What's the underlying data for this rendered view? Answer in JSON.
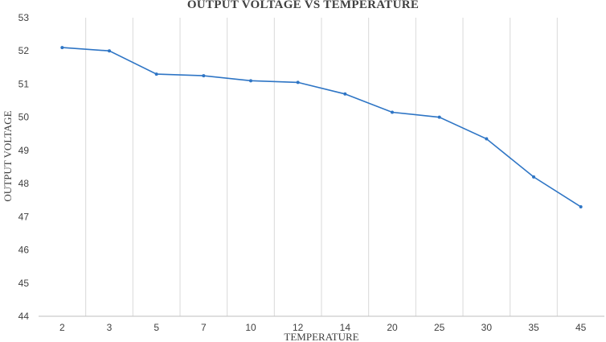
{
  "chart_data": {
    "type": "line",
    "title": "OUTPUT VOLTAGE VS TEMPERATURE",
    "xlabel": "TEMPERATURE",
    "ylabel": "OUTPUT VOLTAGE",
    "categories": [
      "2",
      "3",
      "5",
      "7",
      "10",
      "12",
      "14",
      "20",
      "25",
      "30",
      "35",
      "45"
    ],
    "series": [
      {
        "values": [
          52.1,
          52.0,
          51.3,
          51.25,
          51.1,
          51.05,
          50.7,
          50.15,
          50.0,
          49.35,
          48.2,
          47.3
        ]
      }
    ],
    "ylim": [
      44,
      53
    ],
    "yticks": [
      44,
      45,
      46,
      47,
      48,
      49,
      50,
      51,
      52,
      53
    ],
    "grid": "vertical",
    "line_color": "#2e75c5",
    "grid_color": "#d9d9d9"
  }
}
